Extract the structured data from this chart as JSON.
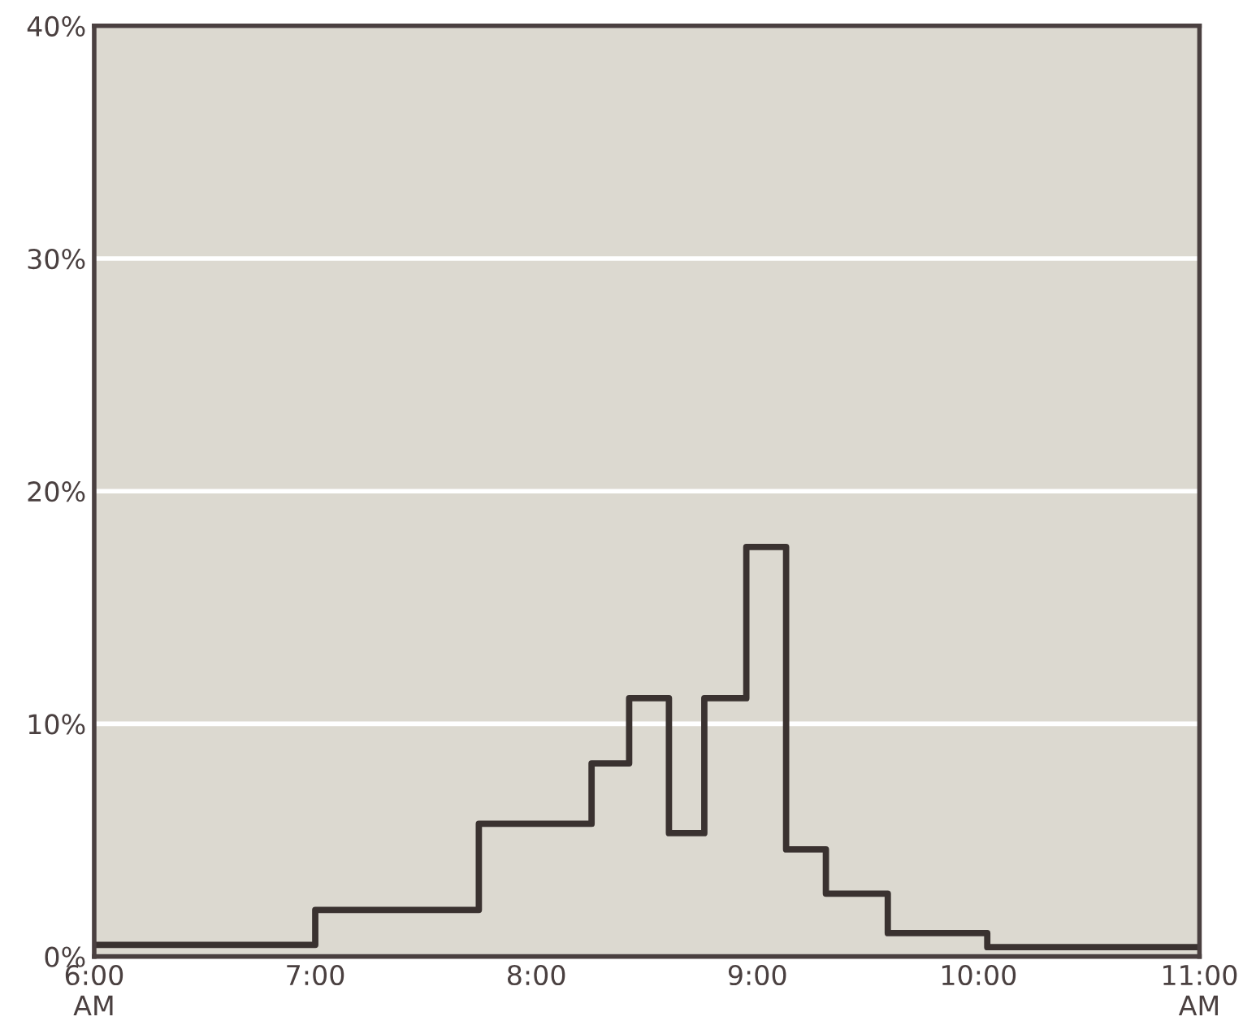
{
  "chart_data": {
    "type": "step",
    "x": [
      6,
      7,
      7.74,
      8.25,
      8.42,
      8.6,
      8.76,
      8.95,
      9.13,
      9.31,
      9.59,
      10.04,
      11
    ],
    "series": [
      {
        "color": "#3a3230",
        "values": [
          0.5,
          2,
          5.7,
          8.3,
          11.1,
          5.3,
          11.1,
          17.6,
          4.6,
          2.7,
          1.0,
          0.4,
          0.4
        ]
      }
    ],
    "xlim": [
      6,
      11
    ],
    "xticks": [
      {
        "value": 6,
        "label": "6:00\nAM"
      },
      {
        "value": 7,
        "label": "7:00"
      },
      {
        "value": 8,
        "label": "8:00"
      },
      {
        "value": 9,
        "label": "9:00"
      },
      {
        "value": 10,
        "label": "10:00"
      },
      {
        "value": 11,
        "label": "11:00\nAM"
      }
    ],
    "ylim": [
      0,
      40
    ],
    "yticks": [
      {
        "value": 0,
        "label": "0%"
      },
      {
        "value": 10,
        "label": "10%"
      },
      {
        "value": 20,
        "label": "20%"
      },
      {
        "value": 30,
        "label": "30%"
      },
      {
        "value": 40,
        "label": "40%"
      }
    ],
    "grid": "y",
    "line_style": "solid",
    "marker": "none"
  }
}
